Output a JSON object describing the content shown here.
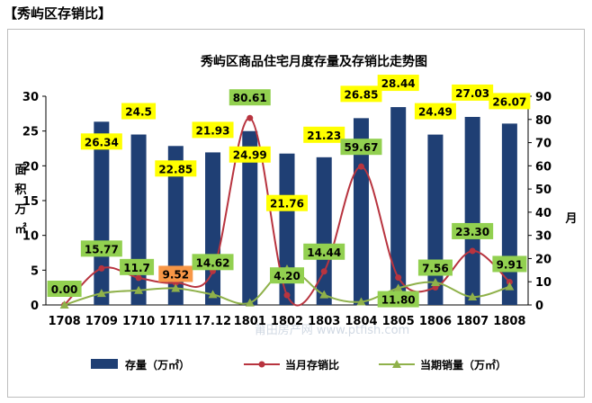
{
  "header": {
    "title": "【秀屿区存销比】"
  },
  "chart_data": {
    "type": "bar+line",
    "title": "秀屿区商品住宅月度存量及存销比走势图",
    "categories": [
      "1708",
      "1709",
      "1710",
      "1711",
      "17.12",
      "1801",
      "1802",
      "1803",
      "1804",
      "1805",
      "1806",
      "1807",
      "1808"
    ],
    "left_axis": {
      "label": [
        "面",
        "积",
        "万",
        "㎡"
      ],
      "ylim": [
        0,
        30
      ],
      "ticks": [
        0,
        5,
        10,
        15,
        20,
        25,
        30
      ]
    },
    "right_axis": {
      "label": "月",
      "ylim": [
        0,
        90
      ],
      "ticks": [
        0,
        10,
        20,
        30,
        40,
        50,
        60,
        70,
        80,
        90
      ]
    },
    "series": [
      {
        "name": "存量（万㎡）",
        "type": "bar",
        "axis": "left",
        "color": "#1f3f74",
        "values": [
          null,
          26.34,
          24.5,
          22.85,
          21.93,
          24.99,
          21.76,
          21.23,
          26.85,
          28.44,
          24.49,
          27.03,
          26.07
        ],
        "labels": [
          "",
          "26.34",
          "24.5",
          "22.85",
          "21.93",
          "24.99",
          "21.76",
          "21.23",
          "26.85",
          "28.44",
          "24.49",
          "27.03",
          "26.07"
        ]
      },
      {
        "name": "当月存销比",
        "type": "line",
        "axis": "right",
        "color": "#b8343f",
        "values": [
          0.0,
          15.77,
          11.7,
          9.52,
          14.62,
          80.61,
          4.2,
          14.44,
          59.67,
          11.8,
          7.56,
          23.3,
          9.91
        ],
        "labels": [
          "0.00",
          "15.77",
          "11.7",
          "9.52",
          "14.62",
          "80.61",
          "4.20",
          "14.44",
          "59.67",
          "11.80",
          "7.56",
          "23.30",
          "9.91"
        ]
      },
      {
        "name": "当期销量（万㎡）",
        "type": "line",
        "axis": "left",
        "color": "#8fb14a",
        "values": [
          0.0,
          1.67,
          2.1,
          2.4,
          1.5,
          0.31,
          5.18,
          1.47,
          0.45,
          2.41,
          3.24,
          1.16,
          2.63
        ]
      }
    ],
    "watermark": "莆田房产网 www.ptfish.com",
    "legend_position": "bottom",
    "grid": false
  }
}
